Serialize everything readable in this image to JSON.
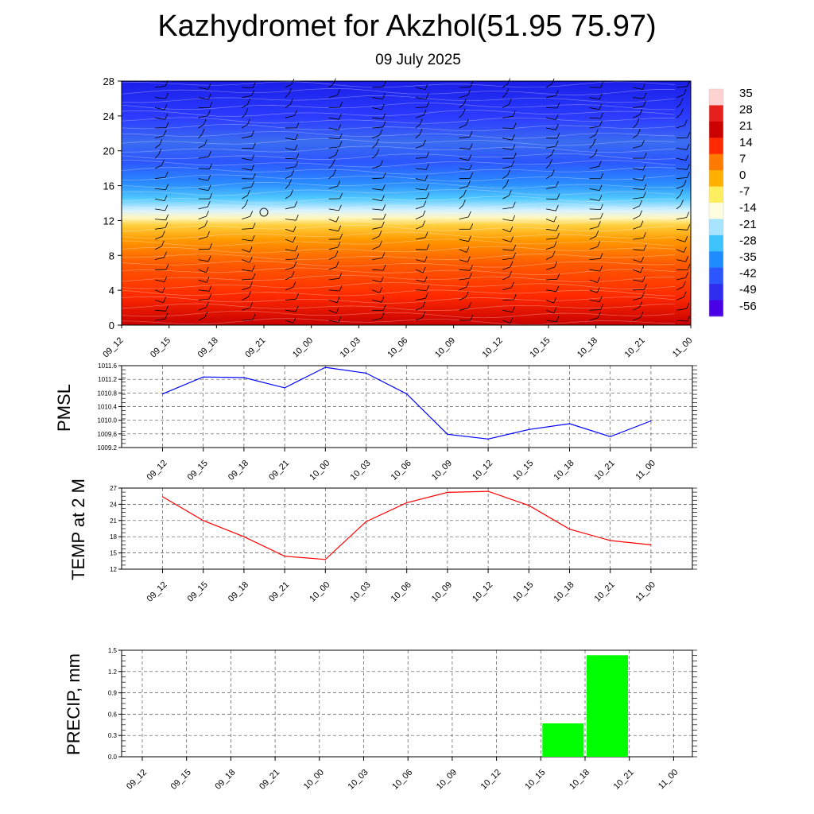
{
  "title": "Kazhydromet for Akzhol(51.95 75.97)",
  "subtitle": "09 July 2025",
  "time_labels": [
    "09_12",
    "09_15",
    "09_18",
    "09_21",
    "10_00",
    "10_03",
    "10_06",
    "10_09",
    "10_12",
    "10_15",
    "10_18",
    "10_21",
    "11_00"
  ],
  "chart_data": [
    {
      "type": "heatmap",
      "description_of_axes": "time vs height level",
      "x": [
        "09_12",
        "09_15",
        "09_18",
        "09_21",
        "10_00",
        "10_03",
        "10_06",
        "10_09",
        "10_12",
        "10_15",
        "10_18",
        "10_21",
        "11_00"
      ],
      "ylim": [
        0,
        28
      ],
      "yticks": [
        0,
        4,
        8,
        12,
        16,
        20,
        24,
        28
      ],
      "colorbar": {
        "labels": [
          35,
          28,
          21,
          14,
          7,
          0,
          -7,
          -14,
          -21,
          -28,
          -35,
          -42,
          -49,
          -56
        ],
        "colors": [
          "#ffd2d2",
          "#e8201d",
          "#cc0000",
          "#ff2a00",
          "#ff7a00",
          "#ffb000",
          "#ffef60",
          "#fffde0",
          "#a8e4ff",
          "#3ec3ff",
          "#1e8cff",
          "#2c56ff",
          "#2f2ef0",
          "#4a00e6"
        ]
      },
      "contour_values_by_level": [
        {
          "level": 0,
          "value": 28
        },
        {
          "level": 4,
          "value": 21
        },
        {
          "level": 8,
          "value": 8
        },
        {
          "level": 12,
          "value": -8
        },
        {
          "level": 14,
          "value": -22
        },
        {
          "level": 16,
          "value": -34
        },
        {
          "level": 20,
          "value": -42
        },
        {
          "level": 24,
          "value": -52
        },
        {
          "level": 28,
          "value": -58
        }
      ],
      "annotation": "wind barbs"
    },
    {
      "type": "line",
      "ylabel": "PMSL",
      "ylim": [
        1009.2,
        1011.6
      ],
      "yticks": [
        "1009.2",
        "1009.6",
        "1010.0",
        "1010.4",
        "1010.8",
        "1011.2",
        "1011.6"
      ],
      "categories": [
        "09_12",
        "09_15",
        "09_18",
        "09_21",
        "10_00",
        "10_03",
        "10_06",
        "10_09",
        "10_12",
        "10_15",
        "10_18",
        "10_21",
        "11_00"
      ],
      "series": [
        {
          "color": "#0000ff",
          "values": [
            1010.77,
            1011.27,
            1011.25,
            1010.95,
            1011.55,
            1011.38,
            1010.77,
            1009.59,
            1009.45,
            1009.73,
            1009.9,
            1009.52,
            1009.98
          ]
        }
      ]
    },
    {
      "type": "line",
      "ylabel": "TEMP at 2 M",
      "ylim": [
        12,
        27
      ],
      "yticks": [
        "12",
        "15",
        "18",
        "21",
        "24",
        "27"
      ],
      "categories": [
        "09_12",
        "09_15",
        "09_18",
        "09_21",
        "10_00",
        "10_03",
        "10_06",
        "10_09",
        "10_12",
        "10_15",
        "10_18",
        "10_21",
        "11_00"
      ],
      "series": [
        {
          "color": "#ff0000",
          "values": [
            25.4,
            21.0,
            18.0,
            14.4,
            13.8,
            20.8,
            24.3,
            26.2,
            26.4,
            23.8,
            19.4,
            17.3,
            16.5
          ]
        }
      ]
    },
    {
      "type": "bar",
      "ylabel": "PRECIP, mm",
      "ylim": [
        0,
        1.5
      ],
      "yticks": [
        "0.0",
        "0.3",
        "0.6",
        "0.9",
        "1.2",
        "1.5"
      ],
      "categories": [
        "09_12",
        "09_15",
        "09_18",
        "09_21",
        "10_00",
        "10_03",
        "10_06",
        "10_09",
        "10_12",
        "10_15",
        "10_18",
        "10_21",
        "11_00"
      ],
      "bar_color": "#00ff00",
      "values": [
        0,
        0,
        0,
        0,
        0,
        0,
        0,
        0,
        0,
        0.47,
        1.43,
        0,
        0
      ]
    }
  ]
}
